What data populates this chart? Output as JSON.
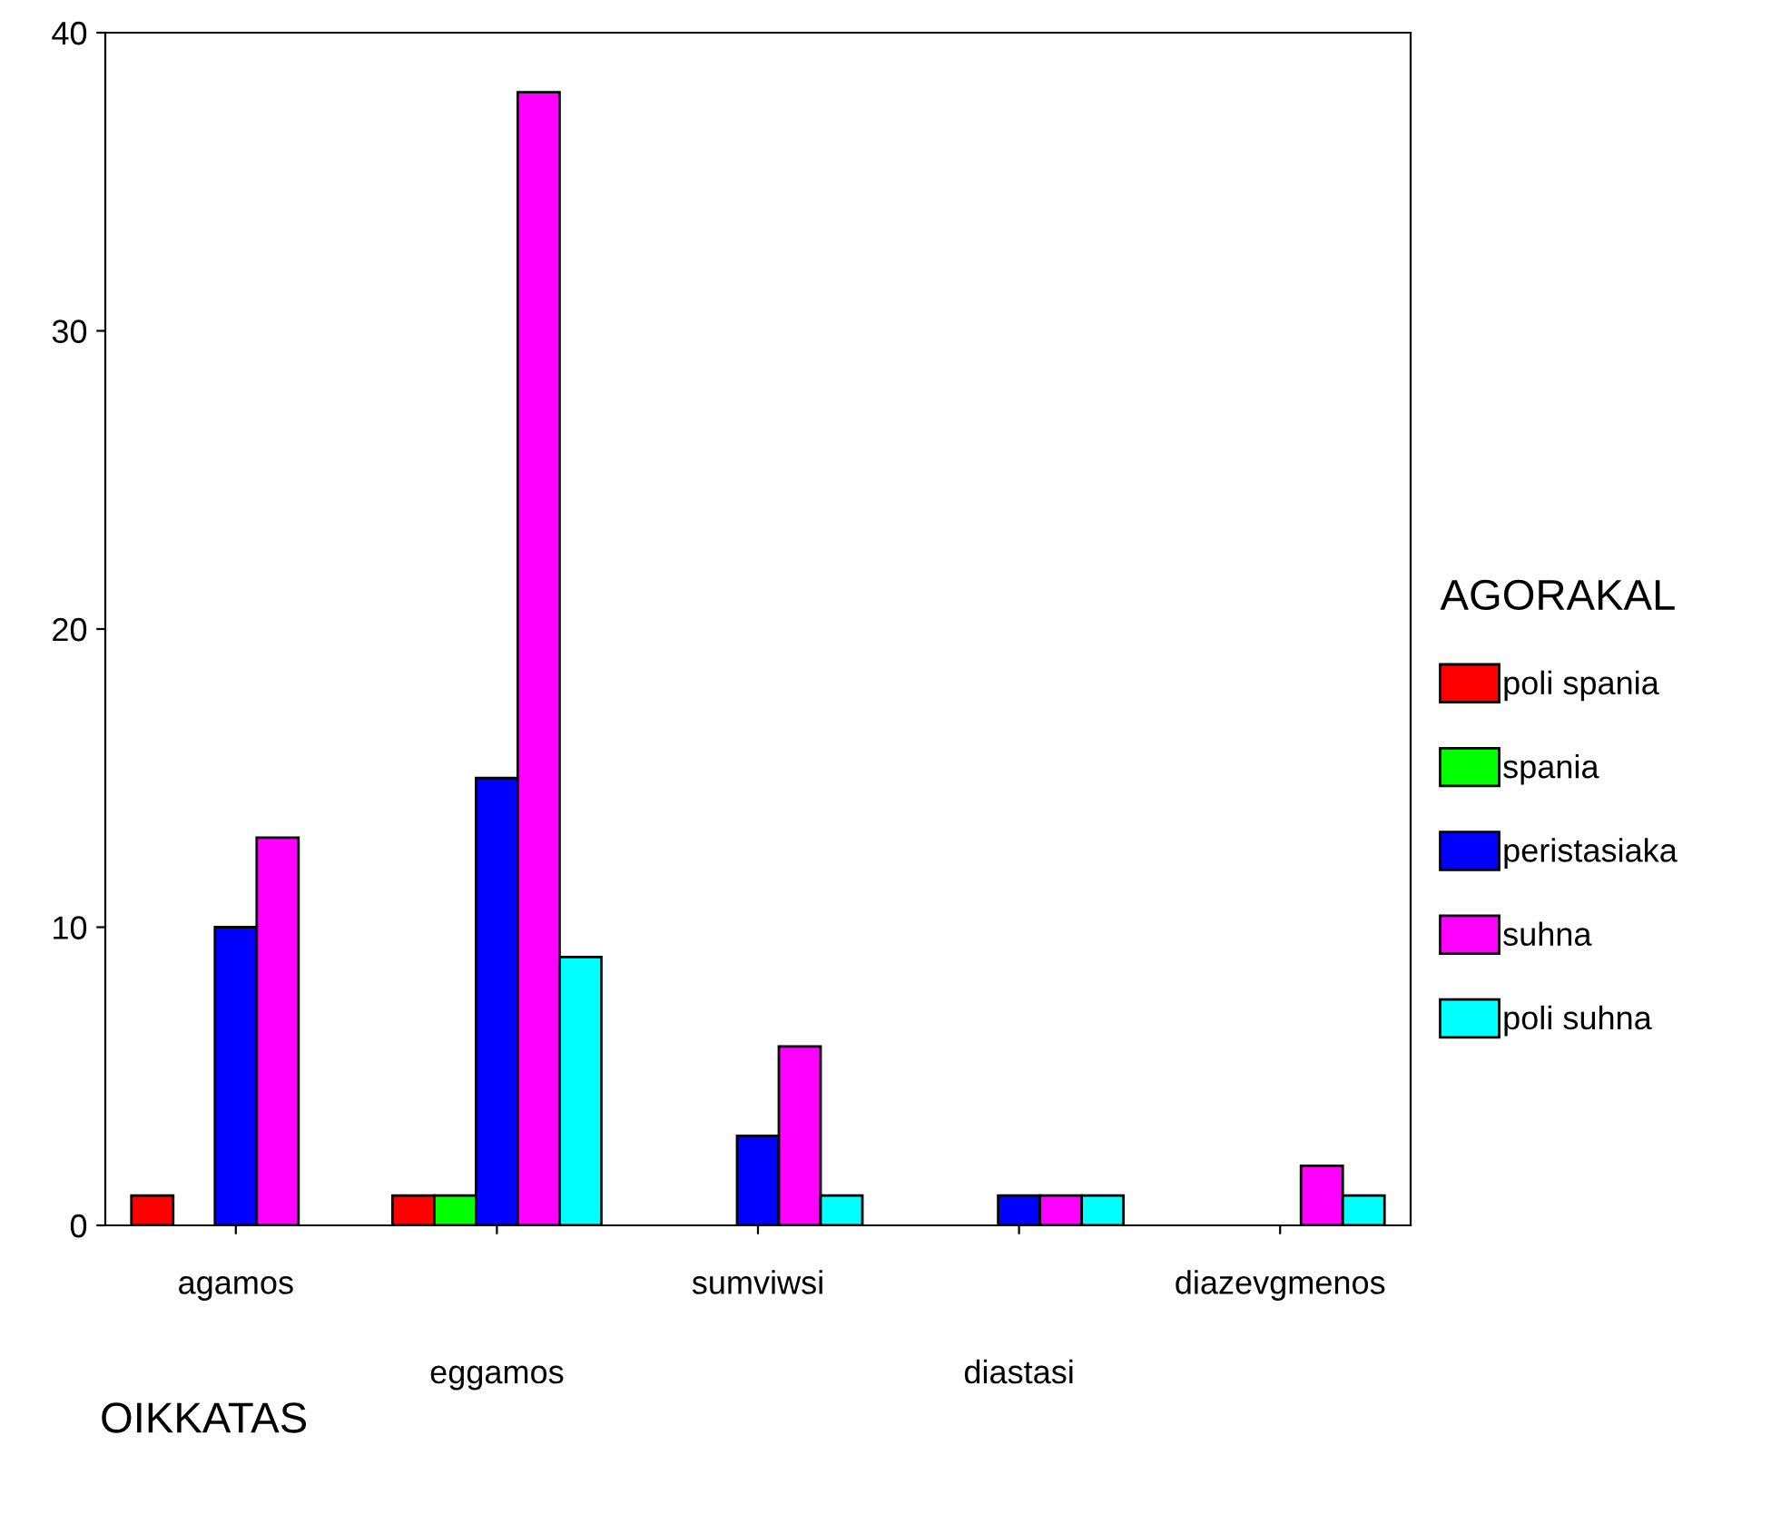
{
  "chart_data": {
    "type": "bar",
    "xlabel": "OIKKATAS",
    "legend_title": "AGORAKAL",
    "categories": [
      "agamos",
      "eggamos",
      "sumviwsi",
      "diastasi",
      "diazevgmenos"
    ],
    "series": [
      {
        "name": "poli spania",
        "color": "#ff0000",
        "values": [
          1,
          1,
          null,
          null,
          null
        ]
      },
      {
        "name": "spania",
        "color": "#00ff00",
        "values": [
          null,
          1,
          null,
          null,
          null
        ]
      },
      {
        "name": "peristasiaka",
        "color": "#0000ff",
        "values": [
          10,
          15,
          3,
          1,
          null
        ]
      },
      {
        "name": "suhna",
        "color": "#ff00ff",
        "values": [
          13,
          38,
          6,
          1,
          2
        ]
      },
      {
        "name": "poli suhna",
        "color": "#00ffff",
        "values": [
          null,
          9,
          1,
          1,
          1
        ]
      }
    ],
    "ylim": [
      0,
      40
    ],
    "yticks": [
      0,
      10,
      20,
      30,
      40
    ],
    "grid": false,
    "legend": "right"
  }
}
